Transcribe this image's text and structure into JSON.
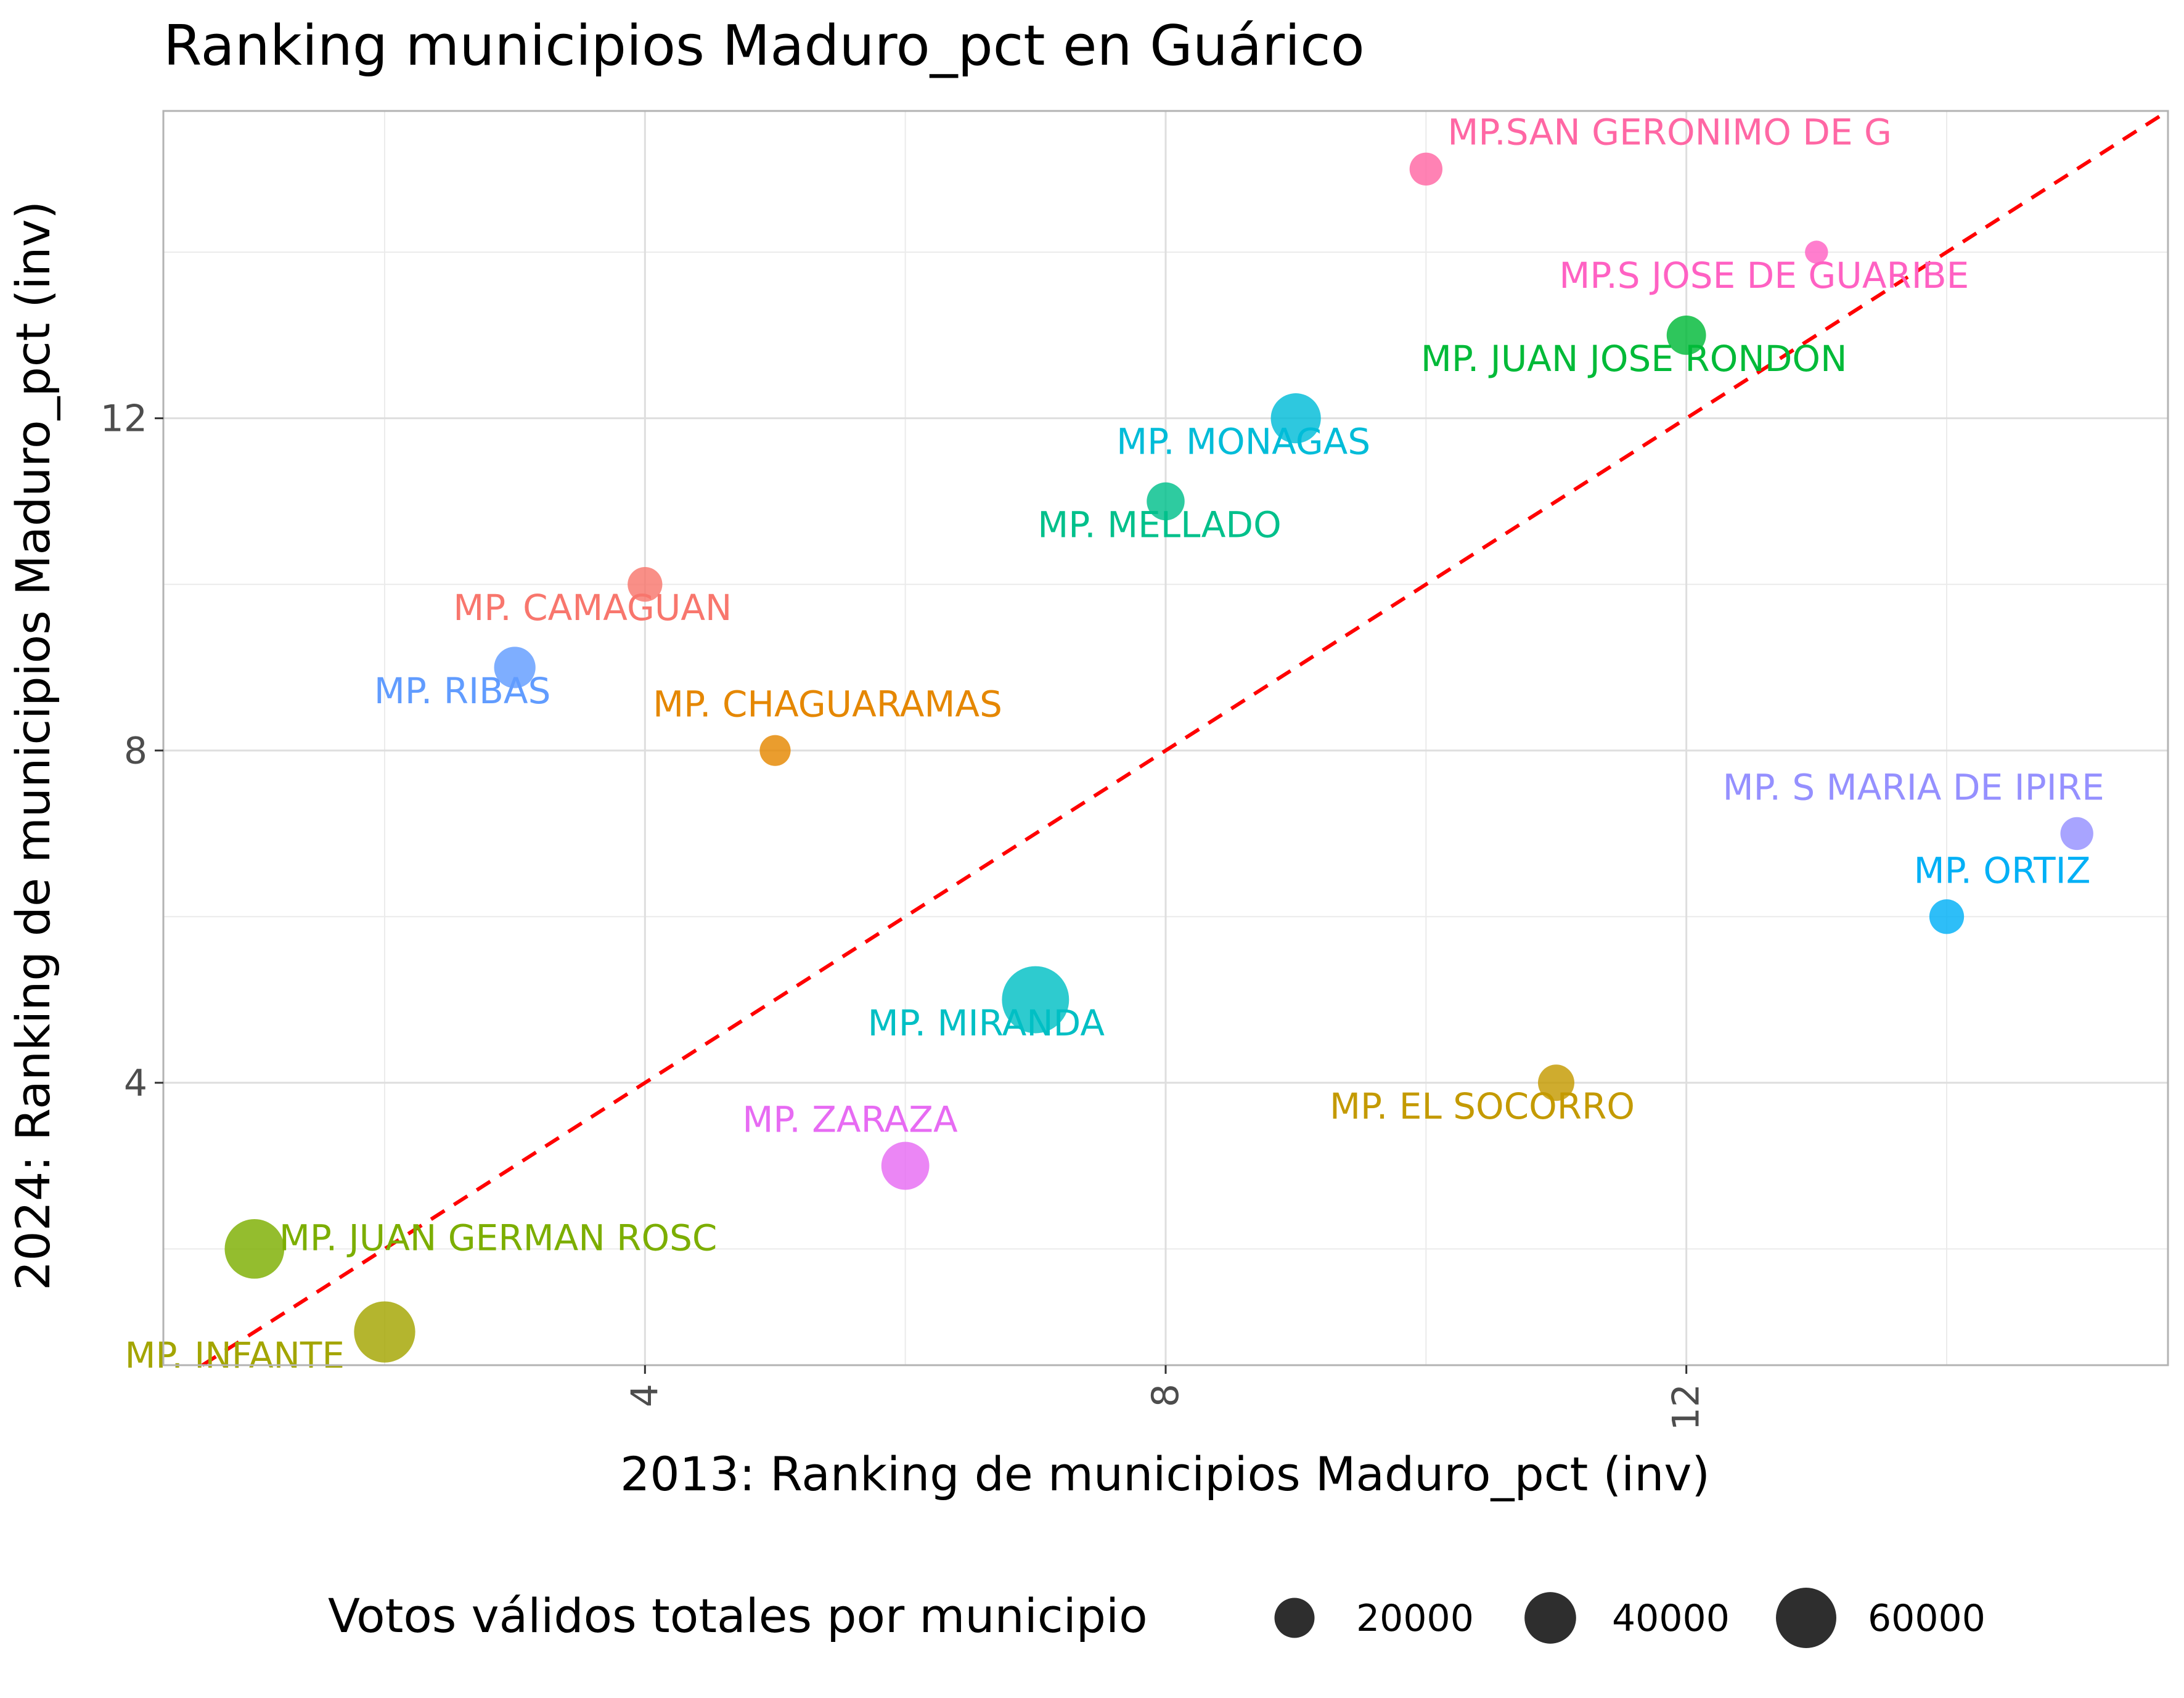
{
  "chart_data": {
    "type": "scatter",
    "title": "Ranking municipios Maduro_pct en Guárico",
    "xlabel": "2013: Ranking de municipios Maduro_pct (inv)",
    "ylabel": "2024: Ranking de municipios Maduro_pct (inv)",
    "xlim": [
      0.3,
      15.7
    ],
    "ylim": [
      0.6,
      15.7
    ],
    "x_ticks": [
      4,
      8,
      12
    ],
    "y_ticks": [
      4,
      8,
      12
    ],
    "grid": true,
    "reference_line": {
      "slope": 1,
      "intercept": 0,
      "style": "dashed",
      "color": "#ff0000"
    },
    "legend": {
      "title": "Votos válidos totales por municipio",
      "position": "bottom",
      "sizes": [
        20000,
        40000,
        60000
      ],
      "labels": [
        "20000",
        "40000",
        "60000"
      ]
    },
    "points": [
      {
        "label": "MP. INFANTE",
        "x": 2,
        "y": 1,
        "votes": 62000,
        "color": "#a3a500"
      },
      {
        "label": "MP. JUAN GERMAN ROSC",
        "x": 1,
        "y": 2,
        "votes": 58000,
        "color": "#7cae00"
      },
      {
        "label": "MP. ZARAZA",
        "x": 6,
        "y": 3,
        "votes": 33000,
        "color": "#e76bf3"
      },
      {
        "label": "MP. EL SOCORRO",
        "x": 11,
        "y": 4,
        "votes": 15000,
        "color": "#c49a00"
      },
      {
        "label": "MP. MIRANDA",
        "x": 7,
        "y": 5,
        "votes": 78000,
        "color": "#00bfc4"
      },
      {
        "label": "MP. ORTIZ",
        "x": 14,
        "y": 6,
        "votes": 13000,
        "color": "#00b0f6"
      },
      {
        "label": "MP. S MARIA DE IPIRE",
        "x": 15,
        "y": 7,
        "votes": 11000,
        "color": "#9590ff"
      },
      {
        "label": "MP. CHAGUARAMAS",
        "x": 5,
        "y": 8,
        "votes": 9000,
        "color": "#e58700"
      },
      {
        "label": "MP. RIBAS",
        "x": 3,
        "y": 9,
        "votes": 22000,
        "color": "#619cff"
      },
      {
        "label": "MP. CAMAGUAN",
        "x": 4,
        "y": 10,
        "votes": 13000,
        "color": "#f8766d"
      },
      {
        "label": "MP. MELLADO",
        "x": 8,
        "y": 11,
        "votes": 17000,
        "color": "#00c08b"
      },
      {
        "label": "MP. MONAGAS",
        "x": 9,
        "y": 12,
        "votes": 37000,
        "color": "#00bcd8"
      },
      {
        "label": "MP. JUAN JOSE RONDON",
        "x": 12,
        "y": 13,
        "votes": 19000,
        "color": "#00ba38"
      },
      {
        "label": "MP.S JOSE DE GUARIBE",
        "x": 13,
        "y": 14,
        "votes": 3000,
        "color": "#ff61c3"
      },
      {
        "label": "MP.SAN GERONIMO DE G",
        "x": 10,
        "y": 15,
        "votes": 11000,
        "color": "#ff67a4"
      }
    ]
  }
}
